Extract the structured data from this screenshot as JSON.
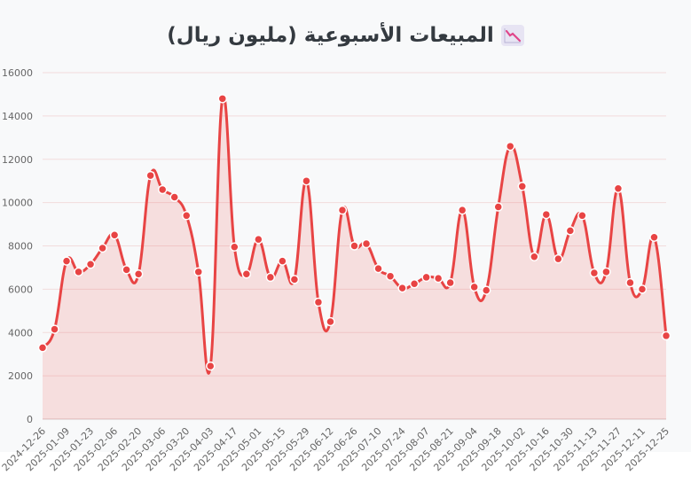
{
  "title": "المبيعات الأسبوعية (مليون ريال)",
  "title_icon": "chart-decreasing-icon",
  "colors": {
    "line": "#e84444",
    "fill": "rgba(232,68,68,0.15)",
    "grid": "#f2dcdc",
    "background": "#f8f9fa"
  },
  "chart_data": {
    "type": "area",
    "title": "المبيعات الأسبوعية (مليون ريال)",
    "xlabel": "",
    "ylabel": "",
    "ylim": [
      0,
      16000
    ],
    "yticks": [
      0,
      2000,
      4000,
      6000,
      8000,
      10000,
      12000,
      14000,
      16000
    ],
    "grid": true,
    "x": [
      "2024-12-26",
      "2025-01-02",
      "2025-01-09",
      "2025-01-16",
      "2025-01-23",
      "2025-01-30",
      "2025-02-06",
      "2025-02-13",
      "2025-02-20",
      "2025-02-27",
      "2025-03-06",
      "2025-03-13",
      "2025-03-20",
      "2025-03-27",
      "2025-04-03",
      "2025-04-10",
      "2025-04-17",
      "2025-04-24",
      "2025-05-01",
      "2025-05-08",
      "2025-05-15",
      "2025-05-22",
      "2025-05-29",
      "2025-06-05",
      "2025-06-12",
      "2025-06-19",
      "2025-06-26",
      "2025-07-03",
      "2025-07-10",
      "2025-07-17",
      "2025-07-24",
      "2025-07-31",
      "2025-08-07",
      "2025-08-14",
      "2025-08-21",
      "2025-08-28",
      "2025-09-04",
      "2025-09-11",
      "2025-09-18",
      "2025-09-25",
      "2025-10-02",
      "2025-10-09",
      "2025-10-16",
      "2025-10-23",
      "2025-10-30",
      "2025-11-06",
      "2025-11-13",
      "2025-11-20",
      "2025-11-27",
      "2025-12-04",
      "2025-12-11",
      "2025-12-18",
      "2025-12-25"
    ],
    "xtick_labels": [
      "2024-12-26",
      "2025-01-09",
      "2025-01-23",
      "2025-02-06",
      "2025-02-20",
      "2025-03-06",
      "2025-03-20",
      "2025-04-03",
      "2025-04-17",
      "2025-05-01",
      "2025-05-15",
      "2025-05-29",
      "2025-06-12",
      "2025-06-26",
      "2025-07-10",
      "2025-07-24",
      "2025-08-07",
      "2025-08-21",
      "2025-09-04",
      "2025-09-18",
      "2025-10-02",
      "2025-10-16",
      "2025-10-30",
      "2025-11-13",
      "2025-11-27",
      "2025-12-11",
      "2025-12-25"
    ],
    "series": [
      {
        "values": [
          3300,
          4150,
          7300,
          6800,
          7150,
          7900,
          8500,
          6900,
          6700,
          11250,
          10600,
          10250,
          9400,
          6800,
          2450,
          14800,
          7950,
          6700,
          8300,
          6550,
          7300,
          6450,
          11000,
          5400,
          4500,
          9650,
          8000,
          8100,
          6950,
          6600,
          6050,
          6250,
          6550,
          6500,
          6300,
          9650,
          6100,
          5950,
          9800,
          12600,
          10750,
          7500,
          9450,
          7400,
          8700,
          9400,
          6750,
          6800,
          10650,
          6300,
          6000,
          8400,
          3850
        ]
      }
    ]
  }
}
